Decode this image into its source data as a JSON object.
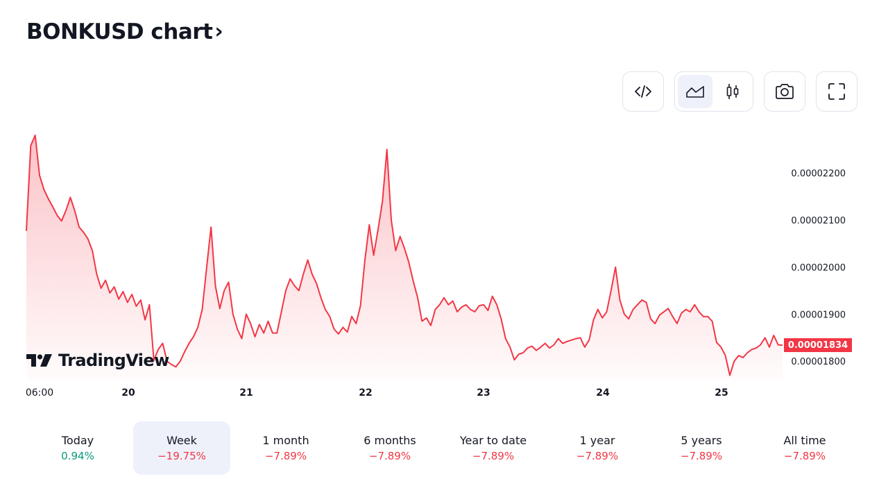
{
  "header": {
    "title": "BONKUSD chart",
    "chevron": "›"
  },
  "toolbar": {
    "embed_icon": "code-icon",
    "area_icon": "area-chart-icon",
    "candle_icon": "candlestick-icon",
    "snapshot_icon": "camera-icon",
    "fullscreen_icon": "fullscreen-icon",
    "active_chart_style": "area"
  },
  "logo": {
    "text": "TradingView"
  },
  "colors": {
    "line": "#f23645",
    "fill_top": "#f23645",
    "text": "#131722",
    "positive": "#089981",
    "negative": "#f23645",
    "active_bg": "#eef1fa"
  },
  "chart_data": {
    "type": "area",
    "x_tick_labels": [
      "06:00",
      "20",
      "21",
      "22",
      "23",
      "24",
      "25"
    ],
    "y_tick_labels": [
      "0.00002200",
      "0.00002100",
      "0.00002000",
      "0.00001900",
      "0.00001800"
    ],
    "y_ticks": [
      2.2e-05,
      2.1e-05,
      2e-05,
      1.9e-05,
      1.8e-05
    ],
    "ylim": [
      1.765e-05,
      2.295e-05
    ],
    "last_price": 1.834e-05,
    "last_price_label": "0.00001834",
    "series": [
      {
        "values": [
          2.077e-05,
          2.258e-05,
          2.28e-05,
          2.195e-05,
          2.165e-05,
          2.145e-05,
          2.128e-05,
          2.11e-05,
          2.098e-05,
          2.12e-05,
          2.148e-05,
          2.12e-05,
          2.085e-05,
          2.074e-05,
          2.06e-05,
          2.035e-05,
          1.985e-05,
          1.955e-05,
          1.972e-05,
          1.945e-05,
          1.958e-05,
          1.932e-05,
          1.948e-05,
          1.925e-05,
          1.942e-05,
          1.917e-05,
          1.93e-05,
          1.888e-05,
          1.92e-05,
          1.802e-05,
          1.825e-05,
          1.838e-05,
          1.8e-05,
          1.793e-05,
          1.788e-05,
          1.8e-05,
          1.82e-05,
          1.838e-05,
          1.852e-05,
          1.872e-05,
          1.91e-05,
          1.998e-05,
          2.085e-05,
          1.96e-05,
          1.912e-05,
          1.95e-05,
          1.968e-05,
          1.9e-05,
          1.868e-05,
          1.848e-05,
          1.9e-05,
          1.88e-05,
          1.852e-05,
          1.878e-05,
          1.86e-05,
          1.885e-05,
          1.86e-05,
          1.86e-05,
          1.905e-05,
          1.95e-05,
          1.975e-05,
          1.96e-05,
          1.95e-05,
          1.985e-05,
          2.015e-05,
          1.985e-05,
          1.965e-05,
          1.935e-05,
          1.91e-05,
          1.895e-05,
          1.868e-05,
          1.858e-05,
          1.872e-05,
          1.862e-05,
          1.895e-05,
          1.88e-05,
          1.918e-05,
          2.015e-05,
          2.09e-05,
          2.025e-05,
          2.08e-05,
          2.14e-05,
          2.25e-05,
          2.1e-05,
          2.035e-05,
          2.065e-05,
          2.04e-05,
          2.01e-05,
          1.97e-05,
          1.935e-05,
          1.885e-05,
          1.892e-05,
          1.876e-05,
          1.91e-05,
          1.92e-05,
          1.935e-05,
          1.92e-05,
          1.928e-05,
          1.905e-05,
          1.915e-05,
          1.92e-05,
          1.91e-05,
          1.905e-05,
          1.918e-05,
          1.92e-05,
          1.908e-05,
          1.938e-05,
          1.92e-05,
          1.89e-05,
          1.848e-05,
          1.83e-05,
          1.803e-05,
          1.815e-05,
          1.818e-05,
          1.828e-05,
          1.832e-05,
          1.823e-05,
          1.83e-05,
          1.838e-05,
          1.828e-05,
          1.835e-05,
          1.848e-05,
          1.838e-05,
          1.842e-05,
          1.845e-05,
          1.848e-05,
          1.85e-05,
          1.83e-05,
          1.845e-05,
          1.888e-05,
          1.91e-05,
          1.892e-05,
          1.905e-05,
          1.95e-05,
          2e-05,
          1.93e-05,
          1.9e-05,
          1.89e-05,
          1.91e-05,
          1.92e-05,
          1.93e-05,
          1.925e-05,
          1.89e-05,
          1.88e-05,
          1.898e-05,
          1.905e-05,
          1.912e-05,
          1.895e-05,
          1.88e-05,
          1.902e-05,
          1.91e-05,
          1.905e-05,
          1.92e-05,
          1.905e-05,
          1.895e-05,
          1.895e-05,
          1.885e-05,
          1.84e-05,
          1.83e-05,
          1.812e-05,
          1.77e-05,
          1.8e-05,
          1.812e-05,
          1.808e-05,
          1.818e-05,
          1.825e-05,
          1.828e-05,
          1.835e-05,
          1.85e-05,
          1.83e-05,
          1.855e-05,
          1.835e-05,
          1.834e-05
        ]
      }
    ],
    "grid": false,
    "legend": "none"
  },
  "periods": [
    {
      "label": "Today",
      "value": "0.94%",
      "trend": "pos"
    },
    {
      "label": "Week",
      "value": "−19.75%",
      "trend": "neg",
      "active": true
    },
    {
      "label": "1 month",
      "value": "−7.89%",
      "trend": "neg"
    },
    {
      "label": "6 months",
      "value": "−7.89%",
      "trend": "neg"
    },
    {
      "label": "Year to date",
      "value": "−7.89%",
      "trend": "neg"
    },
    {
      "label": "1 year",
      "value": "−7.89%",
      "trend": "neg"
    },
    {
      "label": "5 years",
      "value": "−7.89%",
      "trend": "neg"
    },
    {
      "label": "All time",
      "value": "−7.89%",
      "trend": "neg"
    }
  ]
}
